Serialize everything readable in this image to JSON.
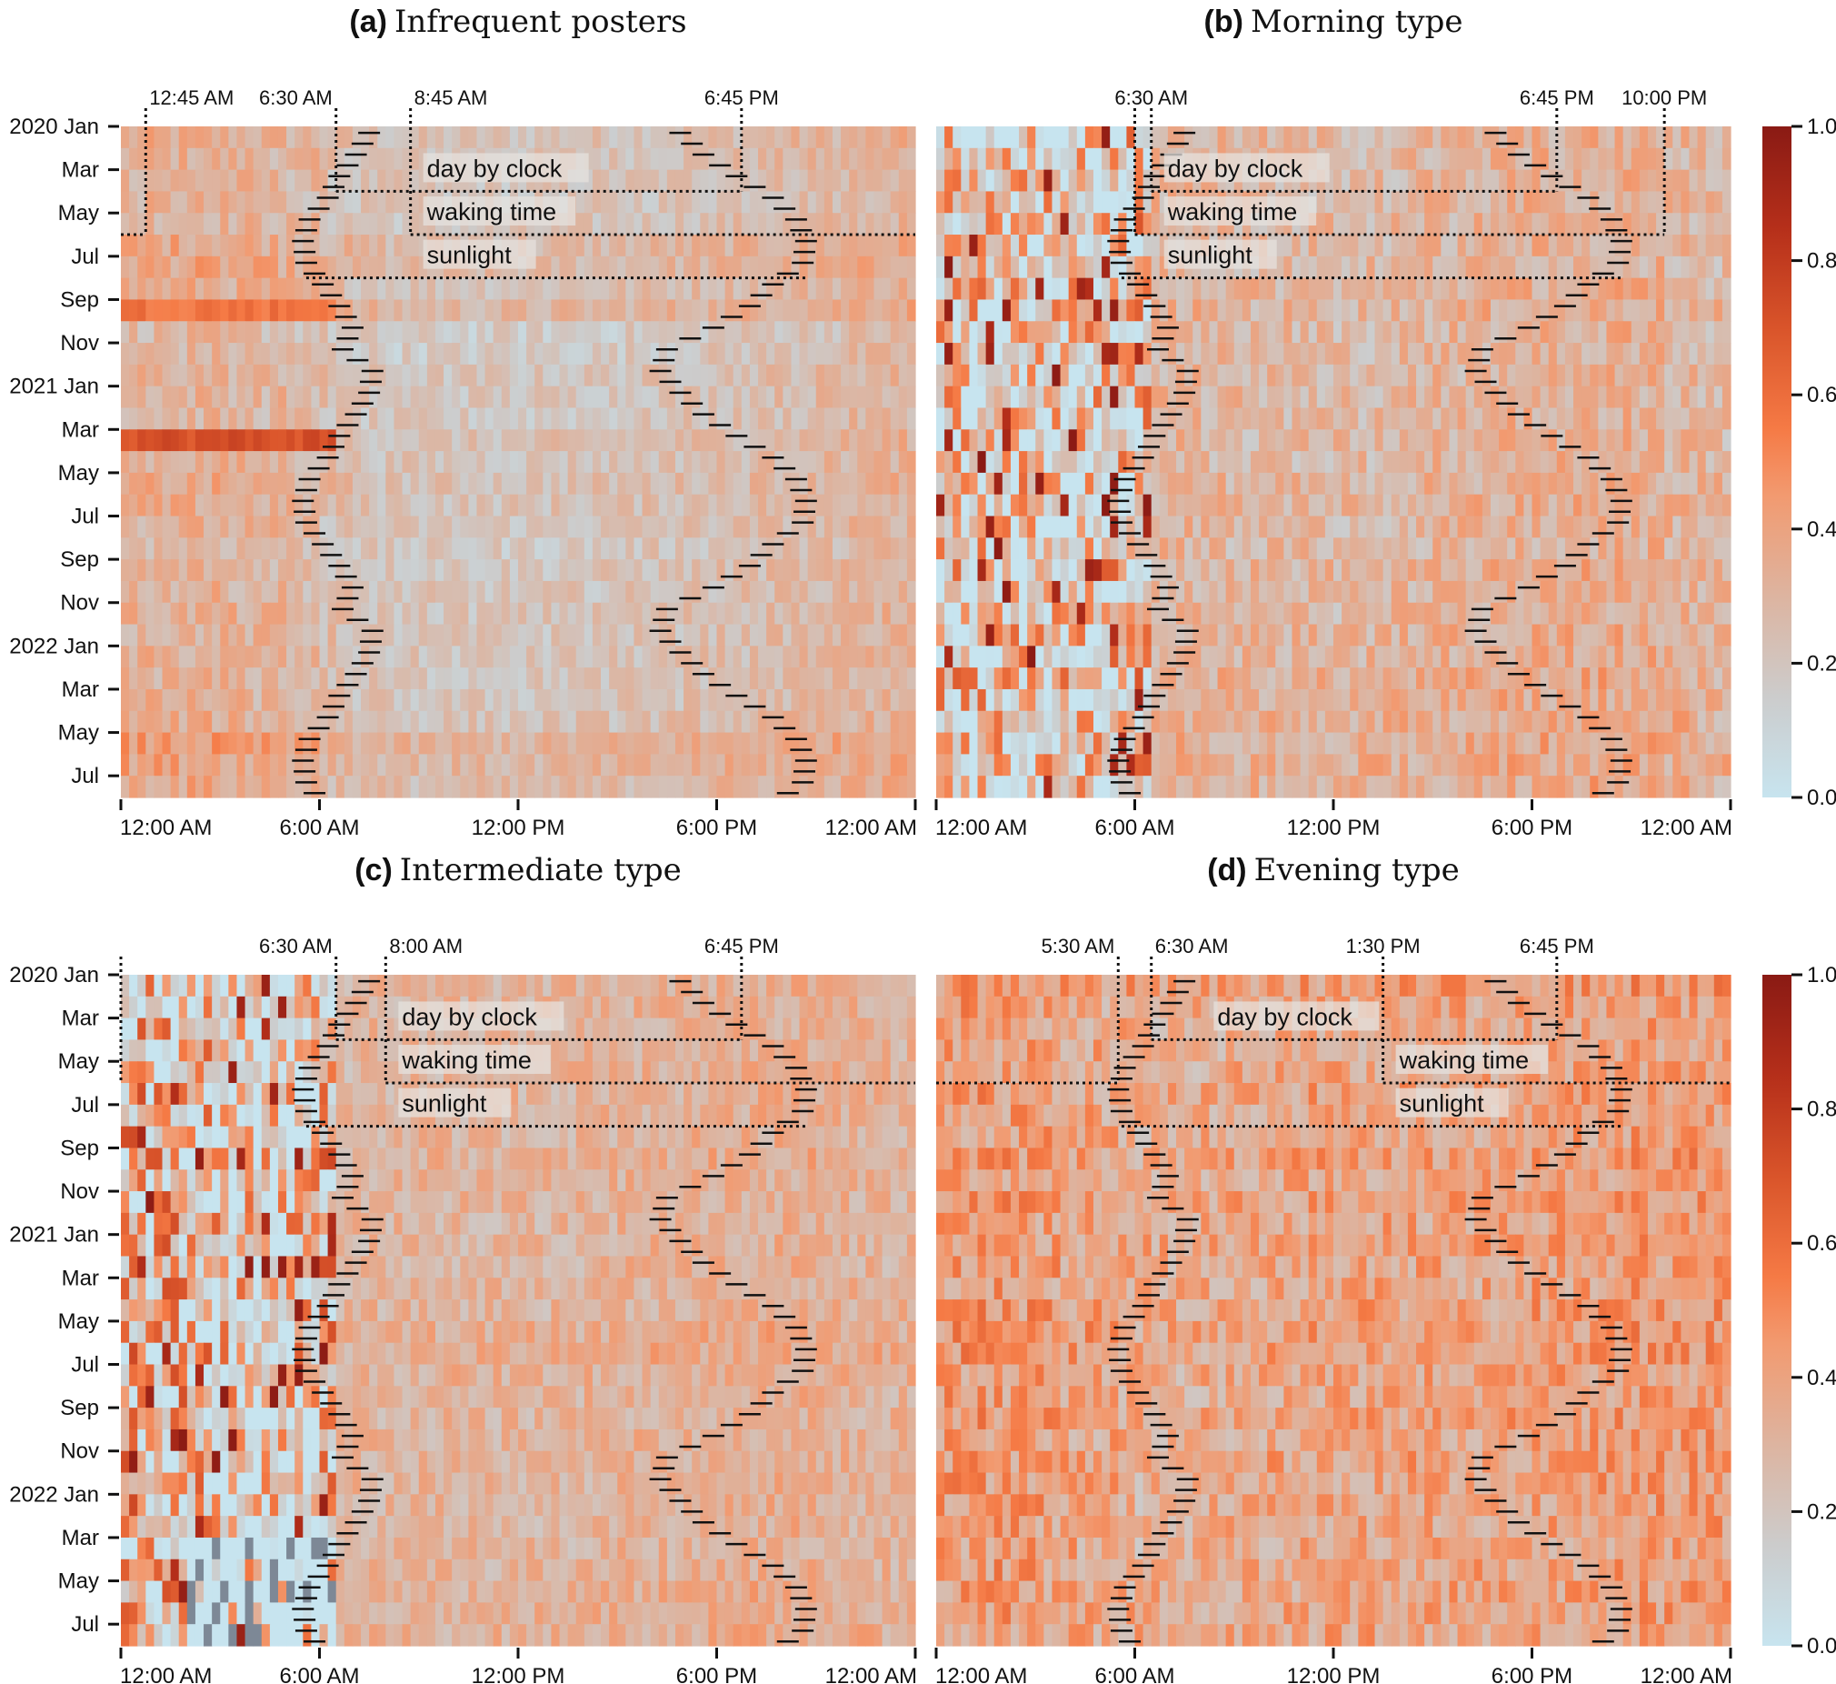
{
  "chart_data": [
    {
      "type": "heatmap",
      "panel": "a",
      "title_letter": "(a)",
      "title": "Infrequent posters",
      "x_tick_labels": [
        "12:00 AM",
        "6:00 AM",
        "12:00 PM",
        "6:00 PM",
        "12:00 AM"
      ],
      "y_tick_labels": [
        "2020 Jan",
        "Mar",
        "May",
        "Jul",
        "Sep",
        "Nov",
        "2021 Jan",
        "Mar",
        "May",
        "Jul",
        "Sep",
        "Nov",
        "2022 Jan",
        "Mar",
        "May",
        "Jul"
      ],
      "months": 31,
      "hour_profile": [
        0.32,
        0.32,
        0.32,
        0.31,
        0.3,
        0.28,
        0.24,
        0.21,
        0.2,
        0.2,
        0.2,
        0.2,
        0.2,
        0.21,
        0.21,
        0.22,
        0.23,
        0.24,
        0.25,
        0.26,
        0.27,
        0.28,
        0.3,
        0.31
      ],
      "night_spread": 0.12,
      "day_spread": 0.1,
      "row_offsets": [
        0.02,
        0.01,
        0,
        -0.01,
        0,
        0.06,
        0.06,
        0.03,
        0.08,
        -0.04,
        -0.03,
        0,
        0,
        -0.02,
        0.02,
        0.01,
        0.03,
        0.02,
        0,
        -0.02,
        0,
        0,
        0.01,
        0,
        0,
        0,
        0,
        0.02,
        0.1,
        0.08,
        0.05
      ],
      "highlights": [
        {
          "month_index": 8,
          "from_hour": 0,
          "to_hour": 6.5,
          "value": 0.58
        },
        {
          "month_index": 14,
          "from_hour": 0,
          "to_hour": 6.5,
          "value": 0.72
        }
      ],
      "annotations": {
        "top_labels": [
          "12:45 AM",
          "6:30 AM",
          "8:45 AM",
          "6:45 PM"
        ],
        "day_by_clock": {
          "label": "day by clock",
          "start_hour": 6.5,
          "end_hour": 18.75
        },
        "waking_time": {
          "label": "waking time",
          "start_hour": 8.75,
          "end_hour": 0.75
        },
        "sunlight": {
          "label": "sunlight",
          "start_hour": 5.6,
          "end_hour": 20.7
        }
      }
    },
    {
      "type": "heatmap",
      "panel": "b",
      "title_letter": "(b)",
      "title": "Morning type",
      "x_tick_labels": [
        "12:00 AM",
        "6:00 AM",
        "12:00 PM",
        "6:00 PM",
        "12:00 AM"
      ],
      "months": 31,
      "hour_profile": [
        0.24,
        0.22,
        0.2,
        0.2,
        0.22,
        0.26,
        0.3,
        0.3,
        0.29,
        0.28,
        0.28,
        0.28,
        0.28,
        0.28,
        0.29,
        0.3,
        0.31,
        0.32,
        0.32,
        0.33,
        0.33,
        0.32,
        0.3,
        0.28
      ],
      "night_spread": 0.4,
      "day_spread": 0.14,
      "row_offsets": [
        0,
        0,
        0,
        0,
        0,
        0,
        0,
        0.02,
        0.02,
        0,
        0,
        0,
        0,
        0,
        0,
        0,
        0.02,
        0.02,
        0,
        0,
        0.02,
        0,
        0,
        0.03,
        0.03,
        0.04,
        0.03,
        0.04,
        0.05,
        0.05,
        0.04
      ],
      "annotations": {
        "top_labels": [
          "6:30 AM",
          "6:45 PM",
          "10:00 PM"
        ],
        "day_by_clock": {
          "label": "day by clock",
          "start_hour": 6.5,
          "end_hour": 18.75
        },
        "waking_time": {
          "label": "waking time",
          "start_hour": 6.0,
          "end_hour": 22.0
        },
        "sunlight": {
          "label": "sunlight",
          "start_hour": 5.6,
          "end_hour": 20.7
        }
      }
    },
    {
      "type": "heatmap",
      "panel": "c",
      "title_letter": "(c)",
      "title": "Intermediate type",
      "x_tick_labels": [
        "12:00 AM",
        "6:00 AM",
        "12:00 PM",
        "6:00 PM",
        "12:00 AM"
      ],
      "y_tick_labels": [
        "2020 Jan",
        "Mar",
        "May",
        "Jul",
        "Sep",
        "Nov",
        "2021 Jan",
        "Mar",
        "May",
        "Jul",
        "Sep",
        "Nov",
        "2022 Jan",
        "Mar",
        "May",
        "Jul"
      ],
      "months": 31,
      "hour_profile": [
        0.3,
        0.28,
        0.22,
        0.18,
        0.16,
        0.2,
        0.28,
        0.3,
        0.3,
        0.3,
        0.3,
        0.3,
        0.3,
        0.3,
        0.31,
        0.32,
        0.32,
        0.33,
        0.33,
        0.34,
        0.34,
        0.33,
        0.32,
        0.31
      ],
      "night_spread": 0.45,
      "day_spread": 0.12,
      "row_offsets": [
        0,
        0,
        0,
        0,
        0,
        0,
        0,
        0,
        0.02,
        0,
        0,
        0,
        0,
        0,
        0,
        0,
        0.03,
        0.04,
        0.02,
        0,
        0,
        0,
        0,
        0,
        0,
        0,
        0,
        0,
        0.02,
        0.03,
        0.02
      ],
      "missing_region": {
        "from_month_index": 26,
        "from_hour": 2,
        "to_hour": 6.5
      },
      "annotations": {
        "top_labels": [
          "6:30 AM",
          "8:00 AM",
          "6:45 PM"
        ],
        "day_by_clock": {
          "label": "day by clock",
          "start_hour": 6.5,
          "end_hour": 18.75
        },
        "waking_time": {
          "label": "waking time",
          "start_hour": 8.0,
          "end_hour": 0.0
        },
        "sunlight": {
          "label": "sunlight",
          "start_hour": 5.6,
          "end_hour": 20.7
        }
      }
    },
    {
      "type": "heatmap",
      "panel": "d",
      "title_letter": "(d)",
      "title": "Evening type",
      "x_tick_labels": [
        "12:00 AM",
        "6:00 AM",
        "12:00 PM",
        "6:00 PM",
        "12:00 AM"
      ],
      "months": 31,
      "hour_profile": [
        0.42,
        0.42,
        0.41,
        0.4,
        0.38,
        0.36,
        0.34,
        0.34,
        0.35,
        0.36,
        0.37,
        0.38,
        0.38,
        0.38,
        0.38,
        0.38,
        0.38,
        0.39,
        0.4,
        0.4,
        0.41,
        0.42,
        0.42,
        0.42
      ],
      "night_spread": 0.18,
      "day_spread": 0.16,
      "row_offsets": [
        0.04,
        0,
        -0.02,
        -0.02,
        0,
        0.02,
        0,
        0,
        0.03,
        0,
        0.02,
        0,
        0.02,
        0,
        0,
        0.02,
        0.03,
        0.02,
        0,
        0,
        0.02,
        0,
        0.02,
        0,
        0,
        0,
        -0.02,
        0,
        0,
        0,
        0
      ],
      "annotations": {
        "top_labels": [
          "5:30 AM",
          "6:30 AM",
          "1:30 PM",
          "6:45 PM"
        ],
        "day_by_clock": {
          "label": "day by clock",
          "start_hour": 6.5,
          "end_hour": 18.75
        },
        "waking_time": {
          "label": "waking time",
          "start_hour": 13.5,
          "end_hour": 5.5
        },
        "sunlight": {
          "label": "sunlight",
          "start_hour": 5.6,
          "end_hour": 20.7
        }
      }
    }
  ],
  "sun_times": {
    "sunrise_by_month": [
      7.5,
      7.1,
      6.6,
      6.25,
      5.7,
      5.5,
      5.6,
      6.1,
      6.6,
      7.0,
      6.7,
      7.6
    ],
    "sunset_by_month": [
      16.9,
      17.6,
      18.6,
      19.7,
      20.4,
      20.7,
      20.6,
      19.7,
      19.0,
      17.9,
      16.5,
      16.3
    ]
  },
  "colorbar": {
    "tick_labels": [
      "0.0",
      "0.2",
      "0.4",
      "0.6",
      "0.8",
      "1.0"
    ],
    "range": [
      0,
      1
    ],
    "stops": [
      "#c7e4ef",
      "#cccccc",
      "#ddb4a0",
      "#f29a70",
      "#f57a45",
      "#d9542a",
      "#b52f1a",
      "#8a1a14"
    ],
    "missing_color": "#7d8896"
  }
}
